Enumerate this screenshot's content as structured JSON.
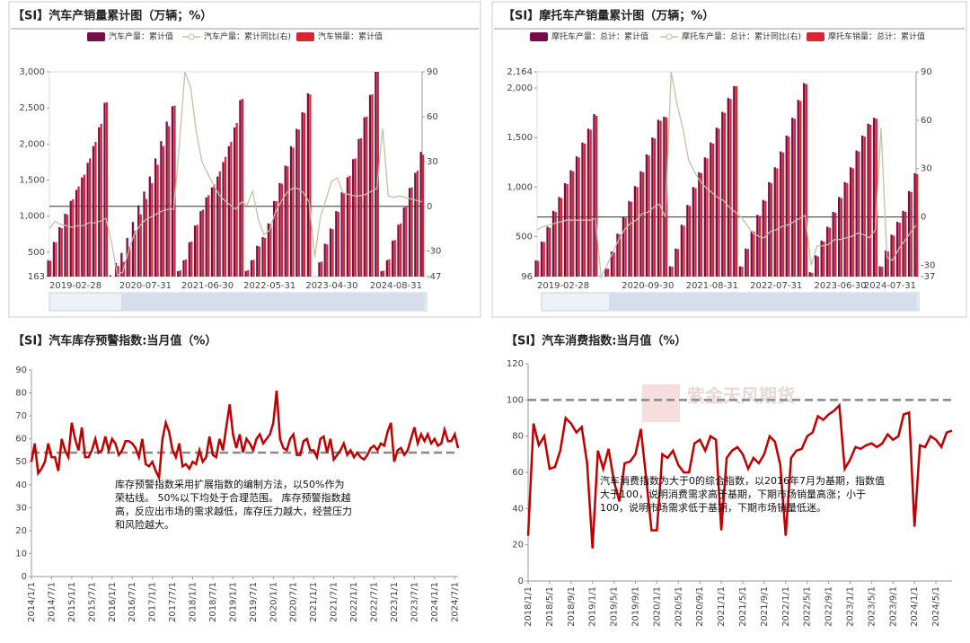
{
  "chart_data": [
    {
      "type": "combo",
      "title": "【SI】汽车产销量累计图（万辆；%）",
      "categories": [
        "2019-02-28",
        null,
        null,
        null,
        null,
        null,
        null,
        null,
        null,
        null,
        null,
        null,
        null,
        null,
        null,
        null,
        null,
        "2020-07-31",
        null,
        null,
        null,
        null,
        null,
        null,
        null,
        null,
        null,
        null,
        "2021-06-30",
        null,
        null,
        null,
        null,
        null,
        null,
        null,
        null,
        null,
        null,
        "2022-05-31",
        null,
        null,
        null,
        null,
        null,
        null,
        null,
        null,
        null,
        null,
        "2023-04-30",
        null,
        null,
        null,
        null,
        null,
        null,
        null,
        null,
        null,
        null,
        null,
        null,
        null,
        null,
        null,
        "2024-08-31"
      ],
      "series": [
        {
          "name": "汽车产量：累计值",
          "kind": "bar",
          "color": "#7a0b4a",
          "values": [
            389,
            643,
            848,
            1034,
            1213,
            1363,
            1537,
            1739,
            1970,
            2232,
            2572,
            180,
            350,
            490,
            700,
            920,
            1150,
            1340,
            1550,
            1800,
            2040,
            2310,
            2523,
            238,
            390,
            640,
            870,
            1070,
            1260,
            1400,
            1550,
            1750,
            1970,
            2230,
            2608,
            240,
            390,
            590,
            710,
            900,
            1210,
            1460,
            1700,
            1970,
            2210,
            2440,
            2702,
            160,
            360,
            620,
            830,
            1070,
            1330,
            1540,
            1790,
            2070,
            2370,
            2680,
            3016,
            240,
            390,
            660,
            880,
            1120,
            1390,
            1600,
            1890
          ]
        },
        {
          "name": "汽车产量：累计同比(右)",
          "kind": "line",
          "axis": "y2",
          "color": "#c9bfa6",
          "values": [
            -15,
            -10,
            -12,
            -13,
            -14,
            -13,
            -13,
            -11,
            -11,
            -10,
            -8,
            -24,
            -46,
            -44,
            -30,
            -19,
            -13,
            -9,
            -7,
            -5,
            -3,
            -2,
            -2,
            40,
            90,
            80,
            50,
            30,
            22,
            15,
            8,
            4,
            1,
            -2,
            3,
            1,
            10,
            -9,
            -19,
            -16,
            -4,
            3,
            9,
            12,
            12,
            9,
            3,
            -34,
            -7,
            5,
            17,
            19,
            9,
            8,
            7,
            7,
            8,
            10,
            12,
            52,
            7,
            6,
            7,
            6,
            5,
            4,
            3
          ]
        },
        {
          "name": "汽车销量：累计值",
          "kind": "bar",
          "color": "#d6262f",
          "values": [
            383,
            637,
            835,
            1024,
            1232,
            1413,
            1575,
            1800,
            2030,
            2280,
            2577,
            160,
            310,
            367,
            576,
            795,
            1026,
            1237,
            1455,
            1712,
            1970,
            2247,
            2531,
            250,
            400,
            650,
            880,
            1090,
            1290,
            1440,
            1620,
            1820,
            2030,
            2290,
            2627,
            253,
            395,
            580,
            700,
            890,
            1210,
            1450,
            1690,
            1950,
            2200,
            2430,
            2686,
            165,
            370,
            610,
            820,
            1060,
            1320,
            1560,
            1800,
            2080,
            2380,
            2690,
            3009,
            243,
            403,
            670,
            900,
            1140,
            1400,
            1630,
            1850
          ]
        }
      ],
      "ylim": [
        163,
        3000
      ],
      "yticks": [
        163,
        500,
        {
          "value": 1000,
          "label": "1,000"
        },
        {
          "value": 1500,
          "label": "1,500"
        },
        {
          "value": 2000,
          "label": "2,000"
        },
        {
          "value": 2500,
          "label": "2,500"
        },
        {
          "value": 3000,
          "label": "3,000"
        }
      ],
      "y2lim": [
        -47,
        90
      ],
      "y2ticks": [
        -47,
        -30,
        0,
        30,
        60,
        90
      ]
    },
    {
      "type": "combo",
      "title": "【SI】摩托车产销量累计图（万辆；%）",
      "categories": [
        "2019-02-28",
        null,
        null,
        null,
        null,
        null,
        null,
        null,
        null,
        null,
        null,
        null,
        null,
        null,
        null,
        null,
        null,
        null,
        null,
        "2020-09-30",
        null,
        null,
        null,
        null,
        null,
        null,
        null,
        null,
        null,
        null,
        "2021-08-31",
        null,
        null,
        null,
        null,
        null,
        null,
        null,
        null,
        null,
        null,
        "2022-07-31",
        null,
        null,
        null,
        null,
        null,
        null,
        null,
        null,
        null,
        null,
        "2023-06-30",
        null,
        null,
        null,
        null,
        null,
        null,
        null,
        null,
        null,
        null,
        null,
        null,
        "2024-07-31"
      ],
      "series": [
        {
          "name": "摩托车产量：总计：累计值",
          "kind": "bar",
          "color": "#7a0b4a",
          "values": [
            260,
            450,
            600,
            760,
            900,
            1040,
            1170,
            1310,
            1450,
            1590,
            1737,
            100,
            180,
            350,
            530,
            700,
            860,
            1010,
            1160,
            1330,
            1500,
            1680,
            1710,
            200,
            380,
            620,
            820,
            1000,
            1150,
            1300,
            1450,
            1600,
            1760,
            1900,
            2020,
            200,
            380,
            560,
            720,
            870,
            1050,
            1200,
            1360,
            1520,
            1700,
            1880,
            2050,
            140,
            310,
            460,
            600,
            750,
            900,
            1050,
            1200,
            1370,
            1520,
            1640,
            1700,
            200,
            360,
            520,
            650,
            760,
            960,
            1140
          ]
        },
        {
          "name": "摩托车产量：总计：累计同比(右)",
          "kind": "line",
          "axis": "y2",
          "color": "#c9bfa6",
          "values": [
            -8,
            -6,
            -5,
            -4,
            -3,
            -2,
            -2,
            -2,
            -2,
            -2,
            -1,
            -37,
            -30,
            -22,
            -14,
            -8,
            -4,
            -2,
            2,
            3,
            6,
            8,
            0,
            90,
            70,
            55,
            35,
            28,
            22,
            18,
            15,
            12,
            10,
            6,
            3,
            0,
            -5,
            -10,
            -12,
            -13,
            -9,
            -8,
            -6,
            -5,
            -3,
            -1,
            1,
            -30,
            -18,
            -18,
            -17,
            -14,
            -14,
            -13,
            -12,
            -10,
            -11,
            -13,
            -8,
            55,
            -25,
            -27,
            -20,
            -15,
            -10,
            -5
          ]
        },
        {
          "name": "摩托车销量：总计：累计值",
          "kind": "bar",
          "color": "#d6262f",
          "values": [
            255,
            445,
            590,
            750,
            890,
            1030,
            1160,
            1300,
            1440,
            1580,
            1720,
            95,
            175,
            340,
            520,
            690,
            850,
            1000,
            1150,
            1320,
            1490,
            1670,
            1705,
            195,
            375,
            610,
            810,
            990,
            1140,
            1290,
            1440,
            1590,
            1750,
            1890,
            2019,
            195,
            375,
            550,
            710,
            860,
            1040,
            1190,
            1350,
            1510,
            1690,
            1870,
            2040,
            135,
            300,
            450,
            590,
            740,
            890,
            1040,
            1190,
            1360,
            1510,
            1630,
            1690,
            195,
            350,
            510,
            640,
            750,
            950,
            1130
          ]
        }
      ],
      "ylim": [
        96,
        2164
      ],
      "yticks": [
        96,
        500,
        {
          "value": 1000,
          "label": "1,000"
        },
        {
          "value": 1500,
          "label": "1,500"
        },
        {
          "value": 2000,
          "label": "2,000"
        },
        {
          "value": 2164,
          "label": "2,164"
        }
      ],
      "y2lim": [
        -37,
        90
      ],
      "y2ticks": [
        -37,
        -30,
        0,
        30,
        60,
        90
      ]
    },
    {
      "type": "line",
      "title": "【SI】汽车库存预警指数:当月值（%）",
      "categories": [
        "2014/1/1",
        null,
        null,
        null,
        null,
        null,
        "2014/7/1",
        null,
        null,
        null,
        null,
        null,
        "2015/1/1",
        null,
        null,
        null,
        null,
        null,
        "2015/7/1",
        null,
        null,
        null,
        null,
        null,
        "2016/1/1",
        null,
        null,
        null,
        null,
        null,
        "2016/7/1",
        null,
        null,
        null,
        null,
        null,
        "2017/1/1",
        null,
        null,
        null,
        null,
        null,
        "2017/7/1",
        null,
        null,
        null,
        null,
        null,
        "2018/1/1",
        null,
        null,
        null,
        null,
        null,
        "2018/7/1",
        null,
        null,
        null,
        null,
        null,
        "2019/1/1",
        null,
        null,
        null,
        null,
        null,
        "2019/7/1",
        null,
        null,
        null,
        null,
        null,
        "2020/1/1",
        null,
        null,
        null,
        null,
        null,
        "2020/7/1",
        null,
        null,
        null,
        null,
        null,
        "2021/1/1",
        null,
        null,
        null,
        null,
        null,
        "2021/7/1",
        null,
        null,
        null,
        null,
        null,
        "2022/1/1",
        null,
        null,
        null,
        null,
        null,
        "2022/7/1",
        null,
        null,
        null,
        null,
        null,
        "2023/1/1",
        null,
        null,
        null,
        null,
        null,
        "2023/7/1",
        null,
        null,
        null,
        null,
        null,
        "2024/1/1",
        null,
        null,
        null,
        null,
        null,
        "2024/7/1",
        null
      ],
      "values": [
        50,
        58,
        45,
        47,
        50,
        58,
        52,
        52,
        46,
        60,
        55,
        52,
        67,
        60,
        55,
        65,
        52,
        52,
        55,
        60,
        54,
        55,
        61,
        55,
        60,
        58,
        53,
        55,
        59,
        59,
        58,
        56,
        52,
        60,
        49,
        48,
        50,
        46,
        43,
        60,
        67,
        63,
        55,
        52,
        58,
        48,
        49,
        47,
        50,
        49,
        55,
        50,
        52,
        61,
        53,
        52,
        60,
        55,
        65,
        75,
        62,
        56,
        62,
        54,
        60,
        58,
        55,
        60,
        62,
        58,
        60,
        62,
        67,
        81,
        60,
        56,
        55,
        60,
        62,
        53,
        53,
        59,
        60,
        55,
        55,
        52,
        60,
        61,
        54,
        60,
        51,
        53,
        55,
        58,
        53,
        55,
        52,
        54,
        52,
        51,
        53,
        56,
        57,
        55,
        58,
        57,
        63,
        67,
        50,
        55,
        56,
        53,
        55,
        60,
        65,
        58,
        62,
        59,
        62,
        58,
        60,
        57,
        58,
        64,
        59,
        59,
        62,
        56
      ],
      "color": "#c00000",
      "hline": 54,
      "hline_color": "#888888",
      "ylim": [
        0,
        90
      ],
      "yticks": [
        0,
        10,
        20,
        30,
        40,
        50,
        60,
        70,
        80,
        90
      ],
      "annotation": "库存预警指数采用扩展指数的编制方法，以50%作为荣枯线。 50%以下均处于合理范围。 库存预警指数越高，反应出市场的需求越低，库存压力越大，经营压力和风险越大。"
    },
    {
      "type": "line",
      "title": "【SI】汽车消费指数:当月值（%）",
      "categories": [
        "2018/1/1",
        null,
        null,
        null,
        "2018/5/1",
        null,
        null,
        null,
        "2018/9/1",
        null,
        null,
        null,
        "2019/1/1",
        null,
        null,
        null,
        "2019/5/1",
        null,
        null,
        null,
        "2019/9/1",
        null,
        null,
        null,
        "2020/1/1",
        null,
        null,
        null,
        "2020/5/1",
        null,
        null,
        null,
        "2020/9/1",
        null,
        null,
        null,
        "2021/1/1",
        null,
        null,
        null,
        "2021/5/1",
        null,
        null,
        null,
        "2021/9/1",
        null,
        null,
        null,
        "2022/1/1",
        null,
        null,
        null,
        "2022/5/1",
        null,
        null,
        null,
        "2022/9/1",
        null,
        null,
        null,
        "2023/1/1",
        null,
        null,
        null,
        "2023/5/1",
        null,
        null,
        null,
        "2023/9/1",
        null,
        null,
        null,
        "2024/1/1",
        null,
        null,
        null,
        "2024/5/1",
        null,
        null,
        null
      ],
      "values": [
        25,
        87,
        75,
        80,
        62,
        63,
        72,
        90,
        87,
        82,
        85,
        65,
        18,
        72,
        62,
        73,
        55,
        44,
        65,
        66,
        70,
        84,
        57,
        28,
        28,
        70,
        68,
        72,
        64,
        60,
        60,
        76,
        78,
        72,
        80,
        78,
        28,
        68,
        72,
        74,
        70,
        62,
        68,
        65,
        70,
        80,
        77,
        64,
        25,
        68,
        72,
        73,
        80,
        82,
        91,
        89,
        92,
        94,
        97,
        62,
        67,
        74,
        73,
        75,
        76,
        74,
        76,
        81,
        78,
        80,
        92,
        93,
        30,
        75,
        74,
        80,
        78,
        74,
        82,
        83
      ],
      "color": "#c00000",
      "hline": 100,
      "hline_color": "#888888",
      "ylim": [
        0,
        120
      ],
      "yticks": [
        0,
        20,
        40,
        60,
        80,
        100,
        120
      ],
      "watermark": "紫金天风期货",
      "annotation": "汽车消费指数为大于0的综合指数，以2016年7月为基期，指数值大于100，说明消费需求高于基期，下期市场销量高涨；小于100，说明市场需求低于基期，下期市场销量低迷。"
    }
  ]
}
